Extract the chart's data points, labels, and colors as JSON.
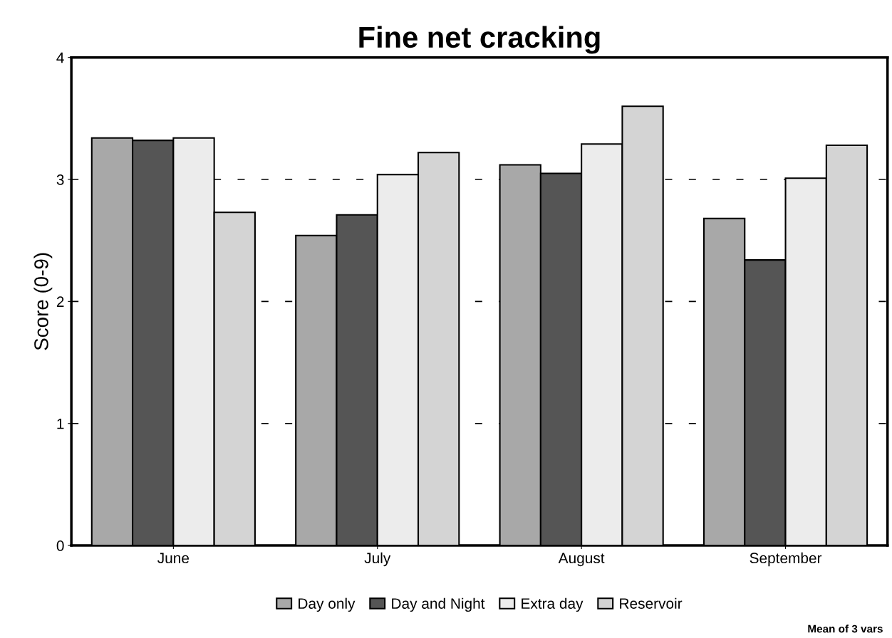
{
  "chart_data": {
    "type": "bar",
    "title": "Fine net cracking",
    "ylabel": "Score (0-9)",
    "categories": [
      "June",
      "July",
      "August",
      "September"
    ],
    "series": [
      {
        "name": "Day only",
        "color": "#a8a8a8",
        "values": [
          3.34,
          2.54,
          3.12,
          2.68
        ]
      },
      {
        "name": "Day and Night",
        "color": "#555555",
        "values": [
          3.32,
          2.71,
          3.05,
          2.34
        ]
      },
      {
        "name": "Extra day",
        "color": "#ececec",
        "values": [
          3.34,
          3.04,
          3.29,
          3.01
        ]
      },
      {
        "name": "Reservoir",
        "color": "#d4d4d4",
        "values": [
          2.73,
          3.22,
          3.6,
          3.28
        ]
      }
    ],
    "ylim": [
      0,
      4
    ],
    "yticks": [
      0,
      1,
      2,
      3,
      4
    ],
    "grid": "y",
    "legend": "bottom",
    "annotations": [
      "Mean of 3 vars"
    ]
  }
}
